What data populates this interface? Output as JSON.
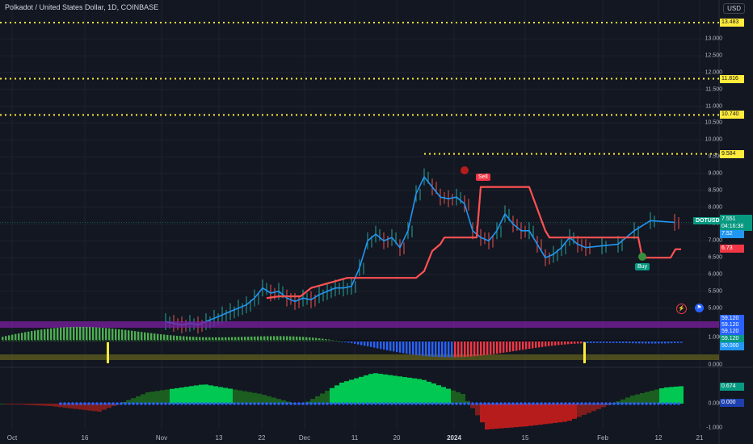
{
  "header": {
    "symbol_title": "Polkadot / United States Dollar, 1D, COINBASE",
    "currency": "USD"
  },
  "price_axis": {
    "labels": [
      "13.000",
      "12.500",
      "12.000",
      "11.500",
      "11.000",
      "10.500",
      "10.000",
      "9.500",
      "9.000",
      "8.500",
      "8.000",
      "7.500",
      "7.000",
      "6.500",
      "6.000",
      "5.500",
      "5.000"
    ],
    "lower_pane_labels": [
      "0.000",
      "1.000",
      "0.000",
      "-1.000"
    ]
  },
  "levels": [
    {
      "value": "13.483",
      "price": 13.483
    },
    {
      "value": "11.816",
      "price": 11.816
    },
    {
      "value": "10.740",
      "price": 10.74
    },
    {
      "value": "9.584",
      "price": 9.584
    }
  ],
  "price_badges": {
    "ticker": "DOTUSD",
    "last": "7.551",
    "countdown": "04:16:38",
    "blue": "7.52",
    "red": "6.73"
  },
  "osc_badges": [
    "59.120",
    "59.120",
    "59.120",
    "59.120",
    "50.000"
  ],
  "lower_badges": {
    "green": "0.674",
    "blue": "0.000"
  },
  "signals": {
    "sell": "Sell",
    "buy": "Buy"
  },
  "x_axis": [
    {
      "label": "Oct",
      "bold": false,
      "x": 15
    },
    {
      "label": "16",
      "bold": false,
      "x": 105
    },
    {
      "label": "Nov",
      "bold": false,
      "x": 200
    },
    {
      "label": "13",
      "bold": false,
      "x": 271
    },
    {
      "label": "22",
      "bold": false,
      "x": 324
    },
    {
      "label": "Dec",
      "bold": false,
      "x": 377
    },
    {
      "label": "11",
      "bold": false,
      "x": 439
    },
    {
      "label": "20",
      "bold": false,
      "x": 491
    },
    {
      "label": "2024",
      "bold": true,
      "x": 562
    },
    {
      "label": "15",
      "bold": false,
      "x": 650
    },
    {
      "label": "Feb",
      "bold": false,
      "x": 746
    },
    {
      "label": "12",
      "bold": false,
      "x": 815
    },
    {
      "label": "21",
      "bold": false,
      "x": 866
    }
  ],
  "colors": {
    "background": "#131722",
    "grid": "#1e222d",
    "up": "#26a69a",
    "down": "#ef5350",
    "level": "#ffeb3b",
    "ma_blue": "#2196f3",
    "stop_red": "#ff5252",
    "osc_purple": "#7b1fa2",
    "green": "#4caf50",
    "red": "#f23645",
    "dark_green": "#1b5e20",
    "bright_green": "#00c853"
  },
  "chart_data": {
    "type": "line",
    "title": "Polkadot / United States Dollar, 1D, COINBASE",
    "xlabel": "",
    "ylabel": "",
    "ylim": [
      4.9,
      13.6
    ],
    "series": [
      {
        "values": [
          4.6,
          4.55,
          4.5,
          4.55,
          4.5,
          4.6,
          4.7,
          4.8,
          4.9,
          5.0,
          5.1,
          5.3,
          5.6,
          5.45,
          5.5,
          5.3,
          5.2,
          5.3,
          5.25,
          5.4,
          5.5,
          5.6,
          5.6,
          5.65,
          6.2,
          7.0,
          7.2,
          7.0,
          7.1,
          6.8,
          7.3,
          8.4,
          8.9,
          8.6,
          8.3,
          8.25,
          8.3,
          8.1,
          7.3,
          7.1,
          7.0,
          7.3,
          7.8,
          7.5,
          7.3,
          7.3,
          6.9,
          6.5,
          6.6,
          6.8,
          7.1,
          6.9,
          6.8,
          6.85,
          6.9,
          7.3,
          7.6,
          7.55
        ],
        "x": [
          205,
          215,
          225,
          235,
          245,
          255,
          265,
          275,
          285,
          295,
          305,
          315,
          325,
          335,
          345,
          355,
          365,
          375,
          385,
          395,
          405,
          415,
          425,
          435,
          445,
          455,
          465,
          475,
          485,
          495,
          505,
          515,
          525,
          535,
          545,
          555,
          565,
          575,
          585,
          595,
          605,
          615,
          625,
          635,
          645,
          655,
          665,
          675,
          685,
          695,
          705,
          715,
          725,
          745,
          765,
          785,
          805,
          835
        ]
      },
      {
        "values": [
          5.3,
          5.35,
          5.35,
          5.6,
          5.9,
          5.9,
          5.9,
          5.9,
          5.9,
          5.9,
          5.9,
          6.1,
          6.7,
          6.9,
          7.1,
          7.1,
          7.1,
          8.6,
          8.6,
          8.6,
          8.6,
          7.3,
          7.1,
          7.1,
          7.1,
          7.1,
          7.1,
          6.5,
          6.5,
          6.75,
          6.75
        ],
        "x": [
          330,
          345,
          372,
          385,
          430,
          455,
          475,
          490,
          500,
          505,
          515,
          525,
          535,
          545,
          550,
          560,
          590,
          595,
          615,
          640,
          655,
          675,
          680,
          700,
          730,
          760,
          790,
          795,
          830,
          836,
          843
        ]
      }
    ]
  }
}
